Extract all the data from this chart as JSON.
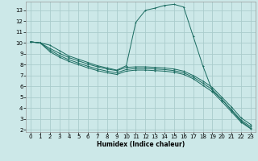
{
  "xlabel": "Humidex (Indice chaleur)",
  "background_color": "#cce8e8",
  "grid_color": "#aacccc",
  "line_color": "#1a6b60",
  "xlim": [
    -0.5,
    23.5
  ],
  "ylim": [
    1.8,
    13.8
  ],
  "xticks": [
    0,
    1,
    2,
    3,
    4,
    5,
    6,
    7,
    8,
    9,
    10,
    11,
    12,
    13,
    14,
    15,
    16,
    17,
    18,
    19,
    20,
    21,
    22,
    23
  ],
  "yticks": [
    2,
    3,
    4,
    5,
    6,
    7,
    8,
    9,
    10,
    11,
    12,
    13
  ],
  "curve1_x": [
    0,
    1,
    2,
    3,
    4,
    5,
    6,
    7,
    8,
    9,
    10,
    11,
    12,
    13,
    14,
    15,
    16,
    17,
    18,
    19,
    20,
    21,
    22,
    23
  ],
  "curve1_y": [
    10.1,
    10.0,
    9.8,
    9.3,
    8.8,
    8.5,
    8.2,
    7.9,
    7.7,
    7.5,
    7.9,
    11.9,
    13.0,
    13.2,
    13.45,
    13.55,
    13.3,
    10.6,
    7.9,
    5.6,
    4.8,
    3.8,
    2.8,
    2.15
  ],
  "curve2_x": [
    0,
    1,
    2,
    3,
    4,
    5,
    6,
    7,
    8,
    9,
    10,
    11,
    12,
    13,
    14,
    15,
    16,
    17,
    18,
    19,
    20,
    21,
    22,
    23
  ],
  "curve2_y": [
    10.1,
    10.0,
    9.5,
    9.05,
    8.65,
    8.35,
    8.05,
    7.8,
    7.6,
    7.45,
    7.75,
    7.8,
    7.8,
    7.75,
    7.7,
    7.6,
    7.4,
    7.0,
    6.5,
    5.9,
    5.0,
    4.1,
    3.1,
    2.5
  ],
  "curve3_x": [
    0,
    1,
    2,
    3,
    4,
    5,
    6,
    7,
    8,
    9,
    10,
    11,
    12,
    13,
    14,
    15,
    16,
    17,
    18,
    19,
    20,
    21,
    22,
    23
  ],
  "curve3_y": [
    10.1,
    10.0,
    9.35,
    8.85,
    8.45,
    8.15,
    7.85,
    7.6,
    7.4,
    7.25,
    7.55,
    7.65,
    7.65,
    7.6,
    7.55,
    7.45,
    7.25,
    6.85,
    6.3,
    5.7,
    4.8,
    3.85,
    2.9,
    2.3
  ],
  "curve4_x": [
    0,
    1,
    2,
    3,
    4,
    5,
    6,
    7,
    8,
    9,
    10,
    11,
    12,
    13,
    14,
    15,
    16,
    17,
    18,
    19,
    20,
    21,
    22,
    23
  ],
  "curve4_y": [
    10.1,
    10.0,
    9.2,
    8.7,
    8.3,
    8.0,
    7.7,
    7.45,
    7.25,
    7.1,
    7.4,
    7.5,
    7.5,
    7.45,
    7.4,
    7.3,
    7.1,
    6.7,
    6.1,
    5.5,
    4.6,
    3.65,
    2.7,
    2.1
  ]
}
